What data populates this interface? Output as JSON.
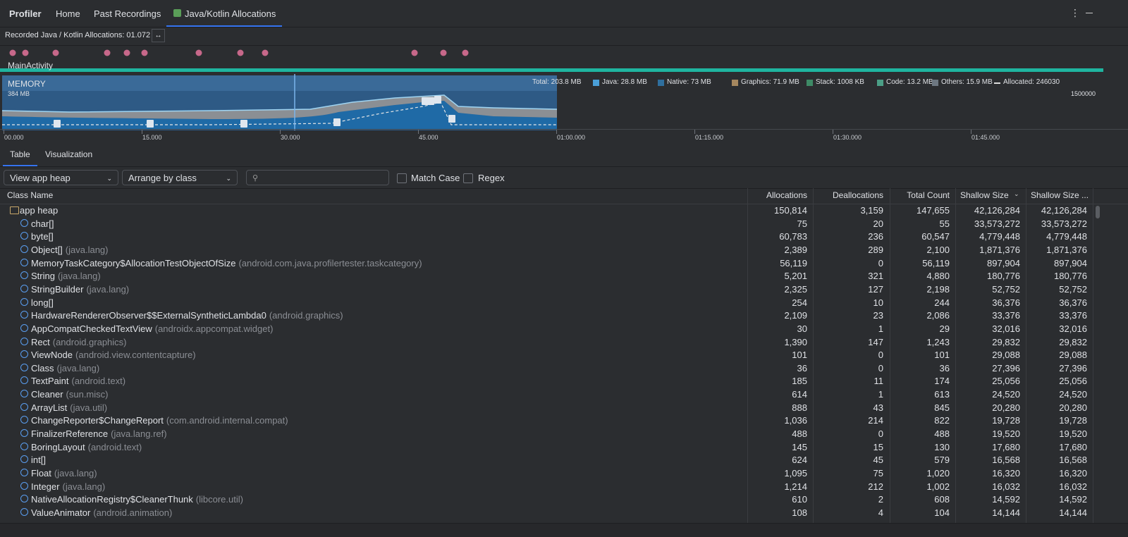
{
  "tabs": [
    "Profiler",
    "Home",
    "Past Recordings",
    "Java/Kotlin Allocations"
  ],
  "recording_label": "Recorded Java / Kotlin Allocations: 01.072",
  "activity": "MainActivity",
  "memory": {
    "title": "MEMORY",
    "scale_label": "384 MB",
    "right_scale_label": "1500000",
    "legend": [
      {
        "label": "Total: 203.8 MB",
        "color": null
      },
      {
        "label": "Java: 28.8 MB",
        "color": "#4a9fd8"
      },
      {
        "label": "Native: 73 MB",
        "color": "#2f6f9e"
      },
      {
        "label": "Graphics: 71.9 MB",
        "color": "#a5875f"
      },
      {
        "label": "Stack: 1008 KB",
        "color": "#3e8a66"
      },
      {
        "label": "Code: 13.2 MB",
        "color": "#4b9e86"
      },
      {
        "label": "Others: 15.9 MB",
        "color": "#6d7781"
      },
      {
        "label": "Allocated: 246030",
        "color": "dashed"
      }
    ]
  },
  "time_ticks": [
    "00.000",
    "15.000",
    "30.000",
    "45.000",
    "01:00.000",
    "01:15.000",
    "01:30.000",
    "01:45.000"
  ],
  "subtabs": [
    "Table",
    "Visualization"
  ],
  "toolbar": {
    "heap": "View app heap",
    "arrange": "Arrange by class",
    "match_case": "Match Case",
    "regex": "Regex"
  },
  "table": {
    "columns": [
      "Class Name",
      "Allocations",
      "Deallocations",
      "Total Count",
      "Shallow Size",
      "Shallow Size ..."
    ],
    "rows": [
      [
        "app heap",
        null,
        "150,814",
        "3,159",
        "147,655",
        "42,126,284",
        "42,126,284"
      ],
      [
        "char[]",
        null,
        "75",
        "20",
        "55",
        "33,573,272",
        "33,573,272"
      ],
      [
        "byte[]",
        null,
        "60,783",
        "236",
        "60,547",
        "4,779,448",
        "4,779,448"
      ],
      [
        "Object[]",
        "(java.lang)",
        "2,389",
        "289",
        "2,100",
        "1,871,376",
        "1,871,376"
      ],
      [
        "MemoryTaskCategory$AllocationTestObjectOfSize",
        "(android.com.java.profilertester.taskcategory)",
        "56,119",
        "0",
        "56,119",
        "897,904",
        "897,904"
      ],
      [
        "String",
        "(java.lang)",
        "5,201",
        "321",
        "4,880",
        "180,776",
        "180,776"
      ],
      [
        "StringBuilder",
        "(java.lang)",
        "2,325",
        "127",
        "2,198",
        "52,752",
        "52,752"
      ],
      [
        "long[]",
        null,
        "254",
        "10",
        "244",
        "36,376",
        "36,376"
      ],
      [
        "HardwareRendererObserver$$ExternalSyntheticLambda0",
        "(android.graphics)",
        "2,109",
        "23",
        "2,086",
        "33,376",
        "33,376"
      ],
      [
        "AppCompatCheckedTextView",
        "(androidx.appcompat.widget)",
        "30",
        "1",
        "29",
        "32,016",
        "32,016"
      ],
      [
        "Rect",
        "(android.graphics)",
        "1,390",
        "147",
        "1,243",
        "29,832",
        "29,832"
      ],
      [
        "ViewNode",
        "(android.view.contentcapture)",
        "101",
        "0",
        "101",
        "29,088",
        "29,088"
      ],
      [
        "Class",
        "(java.lang)",
        "36",
        "0",
        "36",
        "27,396",
        "27,396"
      ],
      [
        "TextPaint",
        "(android.text)",
        "185",
        "11",
        "174",
        "25,056",
        "25,056"
      ],
      [
        "Cleaner",
        "(sun.misc)",
        "614",
        "1",
        "613",
        "24,520",
        "24,520"
      ],
      [
        "ArrayList",
        "(java.util)",
        "888",
        "43",
        "845",
        "20,280",
        "20,280"
      ],
      [
        "ChangeReporter$ChangeReport",
        "(com.android.internal.compat)",
        "1,036",
        "214",
        "822",
        "19,728",
        "19,728"
      ],
      [
        "FinalizerReference",
        "(java.lang.ref)",
        "488",
        "0",
        "488",
        "19,520",
        "19,520"
      ],
      [
        "BoringLayout",
        "(android.text)",
        "145",
        "15",
        "130",
        "17,680",
        "17,680"
      ],
      [
        "int[]",
        null,
        "624",
        "45",
        "579",
        "16,568",
        "16,568"
      ],
      [
        "Float",
        "(java.lang)",
        "1,095",
        "75",
        "1,020",
        "16,320",
        "16,320"
      ],
      [
        "Integer",
        "(java.lang)",
        "1,214",
        "212",
        "1,002",
        "16,032",
        "16,032"
      ],
      [
        "NativeAllocationRegistry$CleanerThunk",
        "(libcore.util)",
        "610",
        "2",
        "608",
        "14,592",
        "14,592"
      ],
      [
        "ValueAnimator",
        "(android.animation)",
        "108",
        "4",
        "104",
        "14,144",
        "14,144"
      ]
    ]
  }
}
